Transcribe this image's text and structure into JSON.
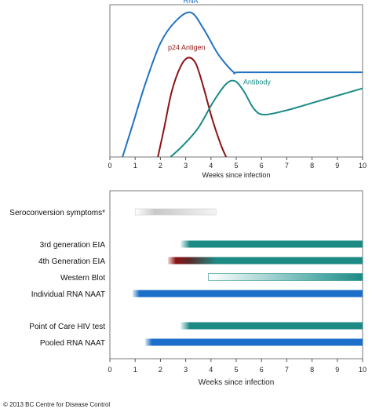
{
  "chart_data": [
    {
      "type": "line",
      "xlabel": "Weeks since infection",
      "xlim": [
        0,
        10
      ],
      "ylim": [
        0,
        1
      ],
      "xticks": [
        "0",
        "1",
        "2",
        "3",
        "4",
        "5",
        "6",
        "7",
        "8",
        "9",
        "10"
      ],
      "series": [
        {
          "name": "RNA",
          "color": "#2272c3",
          "points": [
            [
              0.5,
              0
            ],
            [
              0.9,
              0.22
            ],
            [
              1.4,
              0.5
            ],
            [
              2.0,
              0.78
            ],
            [
              2.6,
              0.93
            ],
            [
              3.2,
              0.99
            ],
            [
              3.7,
              0.88
            ],
            [
              4.3,
              0.7
            ],
            [
              4.9,
              0.58
            ],
            [
              5.1,
              0.58
            ],
            [
              7,
              0.58
            ],
            [
              10,
              0.58
            ]
          ]
        },
        {
          "name": "p24 Antigen",
          "color": "#8b1414",
          "points": [
            [
              1.9,
              0
            ],
            [
              2.15,
              0.2
            ],
            [
              2.45,
              0.45
            ],
            [
              2.8,
              0.62
            ],
            [
              3.1,
              0.68
            ],
            [
              3.4,
              0.64
            ],
            [
              3.7,
              0.48
            ],
            [
              4.05,
              0.26
            ],
            [
              4.4,
              0.08
            ],
            [
              4.6,
              0
            ]
          ]
        },
        {
          "name": "Antibody",
          "color": "#1a8a87",
          "points": [
            [
              2.4,
              0
            ],
            [
              2.9,
              0.08
            ],
            [
              3.5,
              0.2
            ],
            [
              4.1,
              0.38
            ],
            [
              4.6,
              0.5
            ],
            [
              4.95,
              0.52
            ],
            [
              5.3,
              0.45
            ],
            [
              5.7,
              0.33
            ],
            [
              6.1,
              0.29
            ],
            [
              7,
              0.32
            ],
            [
              8,
              0.37
            ],
            [
              9,
              0.42
            ],
            [
              10,
              0.47
            ]
          ]
        }
      ]
    },
    {
      "type": "bar",
      "orientation": "horizontal-range",
      "xlabel": "Weeks since infection",
      "xlim": [
        0,
        10
      ],
      "xticks": [
        "0",
        "1",
        "2",
        "3",
        "4",
        "5",
        "6",
        "7",
        "8",
        "9",
        "10"
      ],
      "rows": [
        {
          "label": "Seroconversion symptoms*",
          "start": 1.0,
          "end": 4.2,
          "style": "gray",
          "group": 0
        },
        {
          "label": "3rd generation EIA",
          "start": 2.8,
          "end": 10,
          "style": "teal",
          "group": 1
        },
        {
          "label": "4th Generation EIA",
          "start": 2.3,
          "end": 10,
          "style": "red-teal",
          "group": 1
        },
        {
          "label": "Western Blot",
          "start": 3.9,
          "end": 10,
          "style": "teal-fade",
          "group": 1
        },
        {
          "label": "Individual RNA NAAT",
          "start": 0.9,
          "end": 10,
          "style": "blue",
          "group": 1
        },
        {
          "label": "Point of Care HIV test",
          "start": 2.8,
          "end": 10,
          "style": "teal",
          "group": 2
        },
        {
          "label": "Pooled RNA NAAT",
          "start": 1.4,
          "end": 10,
          "style": "blue",
          "group": 2
        }
      ]
    }
  ],
  "footer": {
    "copyright": "© 2013 BC Centre for Disease Control"
  }
}
